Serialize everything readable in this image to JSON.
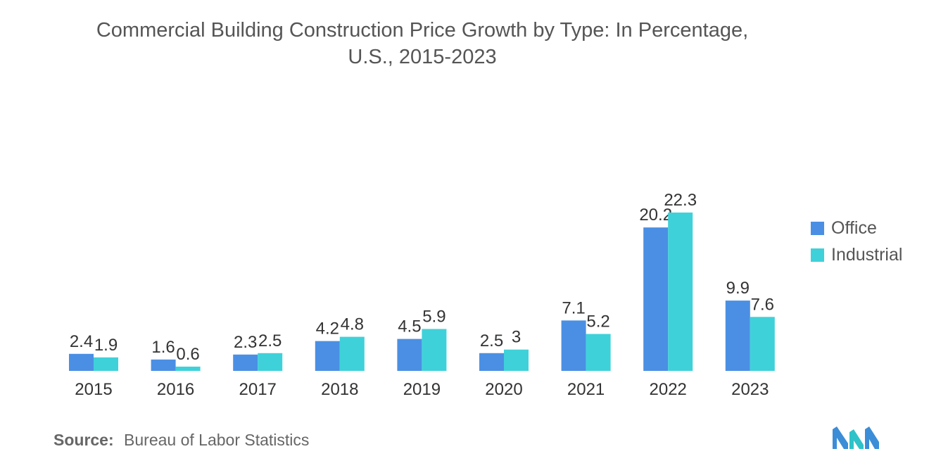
{
  "chart_data": {
    "type": "bar",
    "title_lines": [
      "Commercial Building Construction Price Growth by Type: In Percentage,",
      "U.S., 2015-2023"
    ],
    "categories": [
      "2015",
      "2016",
      "2017",
      "2018",
      "2019",
      "2020",
      "2021",
      "2022",
      "2023"
    ],
    "series": [
      {
        "name": "Office",
        "color": "#4a8fe4",
        "values": [
          2.4,
          1.6,
          2.3,
          4.2,
          4.5,
          2.5,
          7.1,
          20.2,
          9.9
        ],
        "labels": [
          "2.4",
          "1.6",
          "2.3",
          "4.2",
          "4.5",
          "2.5",
          "7.1",
          "20.2",
          "9.9"
        ]
      },
      {
        "name": "Industrial",
        "color": "#3fd1d9",
        "values": [
          1.9,
          0.6,
          2.5,
          4.8,
          5.9,
          3,
          5.2,
          22.3,
          7.6
        ],
        "labels": [
          "1.9",
          "0.6",
          "2.5",
          "4.8",
          "5.9",
          "3",
          "5.2",
          "22.3",
          "7.6"
        ]
      }
    ],
    "xlabel": "",
    "ylabel": "",
    "ylim": [
      0,
      22.3
    ],
    "grid": false,
    "legend_position": "right"
  },
  "source": {
    "key": "Source:",
    "value": "Bureau of Labor Statistics"
  },
  "logo": {
    "icon": "mordor-intelligence-logo-icon",
    "colors": [
      "#3b8dd8",
      "#2fc2c9"
    ]
  }
}
